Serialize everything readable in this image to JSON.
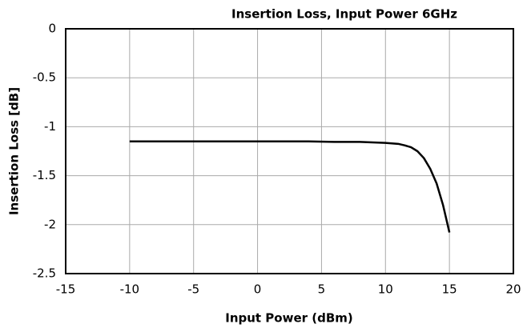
{
  "chart_data": {
    "type": "line",
    "title": "Insertion Loss, Input Power 6GHz",
    "x_label": "Input Power (dBm)",
    "y_label": "Insertion Loss [dB]",
    "x": [
      -10,
      -8,
      -6,
      -4,
      -2,
      0,
      2,
      4,
      6,
      8,
      9,
      10,
      10.5,
      11,
      11.5,
      12,
      12.5,
      13,
      13.5,
      14,
      14.5,
      15
    ],
    "values": [
      -1.15,
      -1.15,
      -1.15,
      -1.15,
      -1.15,
      -1.15,
      -1.15,
      -1.15,
      -1.155,
      -1.155,
      -1.16,
      -1.165,
      -1.17,
      -1.175,
      -1.19,
      -1.21,
      -1.25,
      -1.32,
      -1.43,
      -1.58,
      -1.8,
      -2.08
    ],
    "color": "#000000",
    "xlim": [
      -15,
      20
    ],
    "xticks": [
      -15,
      -10,
      -5,
      0,
      5,
      10,
      15,
      20
    ],
    "ylim": [
      -2.5,
      0
    ],
    "yticks": [
      -2.5,
      -2,
      -1.5,
      -1,
      -0.5,
      0
    ],
    "grid": true
  }
}
